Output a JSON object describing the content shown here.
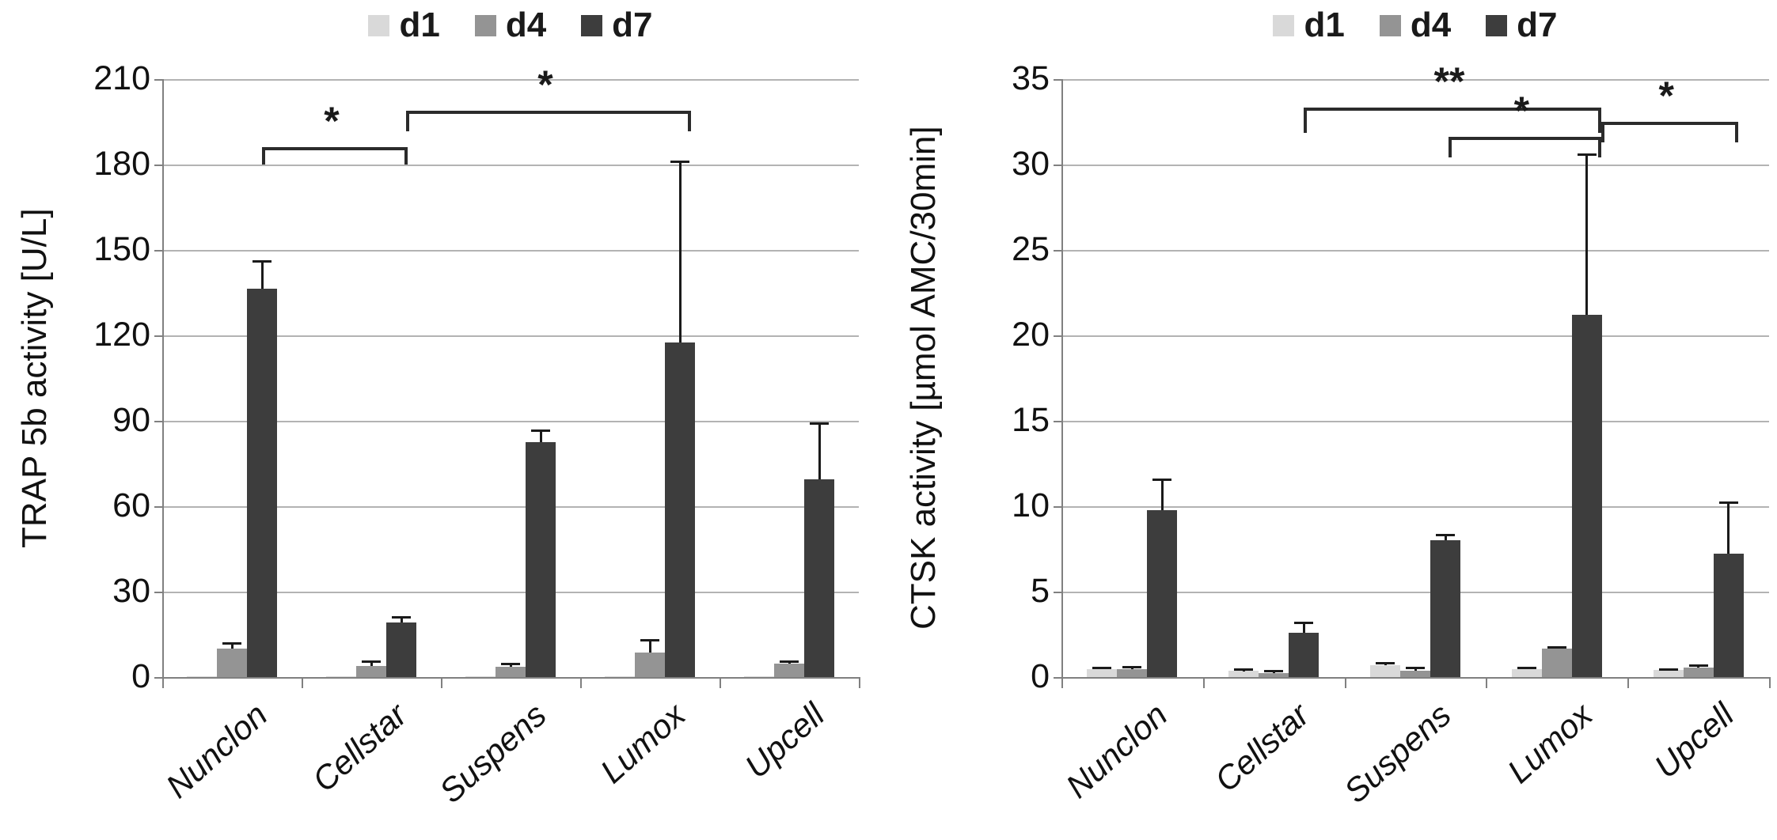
{
  "figure": {
    "background": "#ffffff",
    "series_colors": {
      "d1": "#d9d9d9",
      "d4": "#949494",
      "d7": "#3d3d3d"
    },
    "gridline_color": "#b3b3b3",
    "axis_color": "#808080"
  },
  "chart_data": [
    {
      "type": "bar",
      "title": "",
      "ylabel": "TRAP 5b activity [U/L]",
      "xlabel": "",
      "ylim": [
        0,
        210
      ],
      "yticks": [
        "0",
        "30",
        "60",
        "90",
        "120",
        "150",
        "180",
        "210"
      ],
      "ytick_values": [
        0,
        30,
        60,
        90,
        120,
        150,
        180,
        210
      ],
      "grid": true,
      "legend_position": "top-center",
      "categories": [
        "Nunclon",
        "Cellstar",
        "Suspens",
        "Lumox",
        "Upcell"
      ],
      "series": [
        {
          "name": "d1",
          "color": "#d9d9d9",
          "values": [
            0.3,
            0.2,
            0.2,
            0.3,
            0.2
          ],
          "errors": [
            0,
            0,
            0,
            0,
            0
          ]
        },
        {
          "name": "d4",
          "color": "#949494",
          "values": [
            10,
            3.8,
            3.5,
            8.5,
            4.8
          ],
          "errors": [
            1.8,
            1.7,
            1.2,
            4.5,
            0.6
          ]
        },
        {
          "name": "d7",
          "color": "#3d3d3d",
          "values": [
            136.5,
            19.3,
            82.5,
            117.5,
            69.5
          ],
          "errors": [
            9.5,
            1.7,
            4,
            63.5,
            19.5
          ]
        }
      ],
      "significance": [
        {
          "from": "Nunclon",
          "to": "Cellstar",
          "label": "*",
          "y": 186,
          "drop": 18,
          "x1_off": 0,
          "x2_off": 0
        },
        {
          "from": "Cellstar",
          "to": "Lumox",
          "label": "*",
          "y": 199,
          "drop": 22,
          "x1_off": 6,
          "x2_off": 6
        }
      ]
    },
    {
      "type": "bar",
      "title": "",
      "ylabel": "CTSK activity [µmol AMC/30min]",
      "xlabel": "",
      "ylim": [
        0,
        35
      ],
      "yticks": [
        "0",
        "5",
        "10",
        "15",
        "20",
        "25",
        "30",
        "35"
      ],
      "ytick_values": [
        0,
        5,
        10,
        15,
        20,
        25,
        30,
        35
      ],
      "grid": true,
      "legend_position": "top-center",
      "categories": [
        "Nunclon",
        "Cellstar",
        "Suspens",
        "Lumox",
        "Upcell"
      ],
      "series": [
        {
          "name": "d1",
          "color": "#d9d9d9",
          "values": [
            0.45,
            0.35,
            0.7,
            0.45,
            0.4
          ],
          "errors": [
            0.1,
            0.08,
            0.1,
            0.1,
            0.06
          ]
        },
        {
          "name": "d4",
          "color": "#949494",
          "values": [
            0.45,
            0.25,
            0.35,
            1.65,
            0.55
          ],
          "errors": [
            0.15,
            0.12,
            0.2,
            0.1,
            0.1
          ]
        },
        {
          "name": "d7",
          "color": "#3d3d3d",
          "values": [
            9.75,
            2.6,
            8.0,
            21.2,
            7.2
          ],
          "errors": [
            1.8,
            0.55,
            0.3,
            9.4,
            3.0
          ]
        }
      ],
      "significance": [
        {
          "from": "Cellstar",
          "to": "Lumox",
          "label": "**",
          "y": 33.35,
          "drop": 28,
          "x1_off": 0,
          "x2_off": 10
        },
        {
          "from": "Suspens",
          "to": "Lumox",
          "label": "*",
          "y": 31.6,
          "drop": 22,
          "x1_off": 4,
          "x2_off": 10
        },
        {
          "from": "Lumox",
          "to": "Upcell",
          "label": "*",
          "y": 32.5,
          "drop": 22,
          "x1_off": 18,
          "x2_off": 4
        }
      ]
    }
  ]
}
